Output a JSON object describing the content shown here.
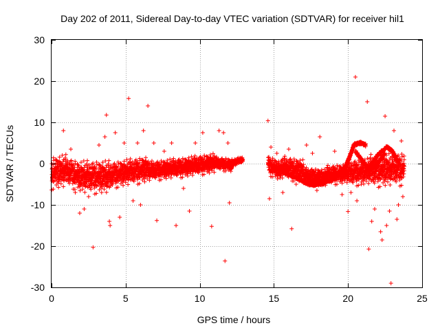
{
  "chart_data": {
    "type": "scatter",
    "title": "Day 202 of 2011, Sidereal Day-to-day VTEC variation (SDTVAR) for receiver hil1",
    "xlabel": "GPS time / hours",
    "ylabel": "SDTVAR / TECUs",
    "xlim": [
      0,
      25
    ],
    "ylim": [
      -30,
      30
    ],
    "xticks": [
      0,
      5,
      10,
      15,
      20,
      25
    ],
    "yticks": [
      -30,
      -20,
      -10,
      0,
      10,
      20,
      30
    ],
    "xtick_labels": [
      "0",
      "5",
      "10",
      "15",
      "20",
      "25"
    ],
    "ytick_labels": [
      "-30",
      "-20",
      "-10",
      "0",
      "10",
      "20",
      "30"
    ],
    "grid": true,
    "marker": "+",
    "color": "#ff0000",
    "series": [
      {
        "name": "SDTVAR",
        "dense_bands": [
          {
            "x_start": 0.0,
            "x_end": 1.0,
            "center_start": -2.5,
            "center_end": -2.0,
            "spread": 5.0
          },
          {
            "x_start": 1.0,
            "x_end": 2.0,
            "center_start": -2.0,
            "center_end": -3.5,
            "spread": 4.5
          },
          {
            "x_start": 2.0,
            "x_end": 4.0,
            "center_start": -3.5,
            "center_end": -3.5,
            "spread": 5.0
          },
          {
            "x_start": 4.0,
            "x_end": 6.5,
            "center_start": -3.0,
            "center_end": -1.5,
            "spread": 4.0
          },
          {
            "x_start": 6.5,
            "x_end": 9.0,
            "center_start": -2.0,
            "center_end": -1.0,
            "spread": 3.0
          },
          {
            "x_start": 9.0,
            "x_end": 11.0,
            "center_start": -1.0,
            "center_end": 0.0,
            "spread": 3.0
          },
          {
            "x_start": 11.0,
            "x_end": 12.2,
            "center_start": 0.0,
            "center_end": -0.5,
            "spread": 2.0
          },
          {
            "x_start": 12.2,
            "x_end": 12.9,
            "center_start": 0.0,
            "center_end": 1.0,
            "spread": 1.0
          },
          {
            "x_start": 14.6,
            "x_end": 15.5,
            "center_start": -0.5,
            "center_end": -2.0,
            "spread": 3.0
          },
          {
            "x_start": 15.5,
            "x_end": 17.0,
            "center_start": -1.0,
            "center_end": -2.0,
            "spread": 3.5
          },
          {
            "x_start": 17.0,
            "x_end": 18.5,
            "center_start": -3.0,
            "center_end": -3.5,
            "spread": 2.5
          },
          {
            "x_start": 18.5,
            "x_end": 20.0,
            "center_start": -3.0,
            "center_end": -2.5,
            "spread": 3.0
          },
          {
            "x_start": 20.0,
            "x_end": 21.5,
            "center_start": -2.5,
            "center_end": -2.0,
            "spread": 4.0
          },
          {
            "x_start": 21.5,
            "x_end": 23.8,
            "center_start": -2.0,
            "center_end": -1.5,
            "spread": 5.0
          }
        ],
        "curves": [
          {
            "x": [
              14.8,
              15.5,
              16.2,
              16.8,
              17.3,
              17.8,
              18.4
            ],
            "y": [
              -0.5,
              -1.5,
              -3.0,
              -4.0,
              -5.0,
              -5.2,
              -4.8
            ],
            "spread": 0.7
          },
          {
            "x": [
              17.0,
              18.0,
              18.8,
              19.3,
              19.8,
              20.1,
              20.4,
              20.8,
              21.2
            ],
            "y": [
              -4.5,
              -4.8,
              -4.2,
              -3.0,
              -1.0,
              1.5,
              4.5,
              5.0,
              4.5
            ],
            "spread": 0.8
          },
          {
            "x": [
              20.5,
              21.0,
              21.5,
              22.0,
              22.5
            ],
            "y": [
              3.0,
              0.5,
              -1.5,
              0.0,
              2.5
            ],
            "spread": 0.8
          },
          {
            "x": [
              21.5,
              22.0,
              22.6,
              23.0,
              23.4
            ],
            "y": [
              -0.5,
              2.0,
              4.0,
              3.0,
              0.0
            ],
            "spread": 0.8
          }
        ],
        "scattered_points": [
          [
            0.8,
            8.0
          ],
          [
            1.3,
            3.5
          ],
          [
            1.6,
            -7.0
          ],
          [
            1.9,
            -12.0
          ],
          [
            2.2,
            -11.0
          ],
          [
            2.5,
            -8.0
          ],
          [
            2.8,
            -20.3
          ],
          [
            3.2,
            4.5
          ],
          [
            3.6,
            6.5
          ],
          [
            3.7,
            11.8
          ],
          [
            3.9,
            -14.0
          ],
          [
            3.95,
            -15.0
          ],
          [
            4.3,
            7.5
          ],
          [
            4.6,
            -13.0
          ],
          [
            4.9,
            5.0
          ],
          [
            5.2,
            15.8
          ],
          [
            5.5,
            -9.0
          ],
          [
            5.8,
            5.0
          ],
          [
            6.0,
            -10.0
          ],
          [
            6.2,
            8.0
          ],
          [
            6.5,
            14.0
          ],
          [
            6.9,
            5.0
          ],
          [
            7.1,
            -13.8
          ],
          [
            7.6,
            3.0
          ],
          [
            8.1,
            5.0
          ],
          [
            8.4,
            -15.0
          ],
          [
            8.9,
            -6.0
          ],
          [
            9.3,
            -11.5
          ],
          [
            9.7,
            5.0
          ],
          [
            10.2,
            7.5
          ],
          [
            10.8,
            -15.2
          ],
          [
            11.3,
            8.0
          ],
          [
            11.6,
            7.5
          ],
          [
            11.7,
            -23.6
          ],
          [
            11.9,
            5.0
          ],
          [
            12.0,
            -9.5
          ],
          [
            14.6,
            10.4
          ],
          [
            14.7,
            -8.5
          ],
          [
            14.8,
            4.0
          ],
          [
            15.2,
            2.5
          ],
          [
            15.6,
            -7.0
          ],
          [
            16.0,
            3.5
          ],
          [
            16.2,
            -15.8
          ],
          [
            16.5,
            -5.0
          ],
          [
            17.2,
            4.5
          ],
          [
            17.6,
            2.5
          ],
          [
            17.9,
            -6.5
          ],
          [
            18.1,
            6.5
          ],
          [
            19.1,
            3.0
          ],
          [
            19.6,
            -7.5
          ],
          [
            20.0,
            -11.6
          ],
          [
            20.2,
            -7.0
          ],
          [
            20.5,
            21.0
          ],
          [
            20.6,
            -9.0
          ],
          [
            20.9,
            -5.0
          ],
          [
            21.3,
            15.0
          ],
          [
            21.4,
            -20.7
          ],
          [
            21.6,
            -14.0
          ],
          [
            21.8,
            -11.0
          ],
          [
            22.2,
            -16.5
          ],
          [
            22.3,
            -18.5
          ],
          [
            22.5,
            11.5
          ],
          [
            22.6,
            -15.0
          ],
          [
            22.8,
            -11.5
          ],
          [
            22.9,
            -29.0
          ],
          [
            23.1,
            8.0
          ],
          [
            23.3,
            -13.5
          ],
          [
            23.4,
            -10.0
          ],
          [
            23.6,
            5.5
          ],
          [
            23.7,
            -8.0
          ]
        ]
      }
    ]
  }
}
